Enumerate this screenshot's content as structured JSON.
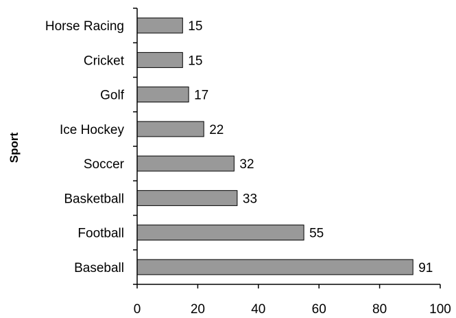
{
  "chart_data": {
    "type": "bar",
    "orientation": "horizontal",
    "title": "",
    "xlabel": "",
    "ylabel": "Sport",
    "categories": [
      "Horse Racing",
      "Cricket",
      "Golf",
      "Ice Hockey",
      "Soccer",
      "Basketball",
      "Football",
      "Baseball"
    ],
    "values": [
      15,
      15,
      17,
      22,
      32,
      33,
      55,
      91
    ],
    "xlim": [
      0,
      100
    ],
    "xticks": [
      0,
      20,
      40,
      60,
      80,
      100
    ],
    "grid": false,
    "legend": "none",
    "bar_color": "#999999",
    "bar_edge_color": "#000000"
  }
}
